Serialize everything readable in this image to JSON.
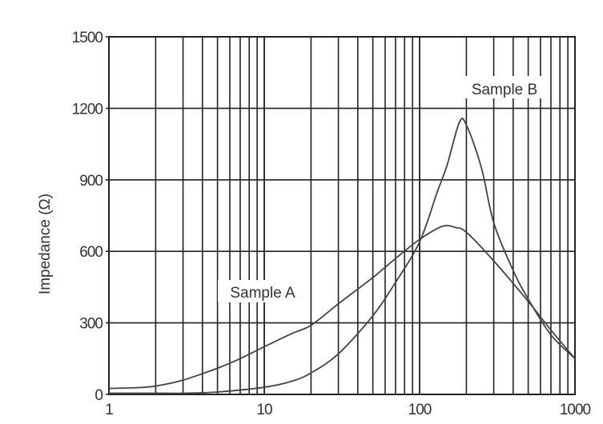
{
  "chart_data": {
    "type": "line",
    "title": "",
    "xlabel": "",
    "ylabel": "Impedance (Ω)",
    "xscale": "log",
    "xlim": [
      1,
      1000
    ],
    "ylim": [
      0,
      1500
    ],
    "grid": true,
    "x_ticks": [
      1,
      10,
      100,
      1000
    ],
    "x_tick_labels": [
      "1",
      "10",
      "100",
      "1000"
    ],
    "y_ticks": [
      0,
      300,
      600,
      900,
      1200,
      1500
    ],
    "y_tick_labels": [
      "0",
      "300",
      "600",
      "900",
      "1200",
      "1500"
    ],
    "series": [
      {
        "name": "Sample A",
        "x": [
          1,
          1.5,
          2,
          3,
          5,
          7,
          10,
          15,
          20,
          30,
          50,
          70,
          100,
          140,
          170,
          200,
          300,
          500,
          700,
          1000
        ],
        "y": [
          25,
          28,
          35,
          60,
          110,
          150,
          200,
          255,
          290,
          380,
          490,
          570,
          650,
          705,
          700,
          680,
          560,
          390,
          270,
          150
        ]
      },
      {
        "name": "Sample B",
        "x": [
          1,
          2,
          3,
          5,
          10,
          15,
          20,
          30,
          50,
          70,
          100,
          130,
          150,
          180,
          200,
          250,
          300,
          400,
          500,
          700,
          1000
        ],
        "y": [
          5,
          5,
          5,
          10,
          30,
          55,
          90,
          170,
          330,
          470,
          640,
          850,
          960,
          1140,
          1130,
          950,
          720,
          520,
          400,
          250,
          150
        ]
      }
    ],
    "annotations": [
      {
        "text": "Sample A",
        "series": "Sample A"
      },
      {
        "text": "Sample B",
        "series": "Sample B"
      }
    ]
  }
}
